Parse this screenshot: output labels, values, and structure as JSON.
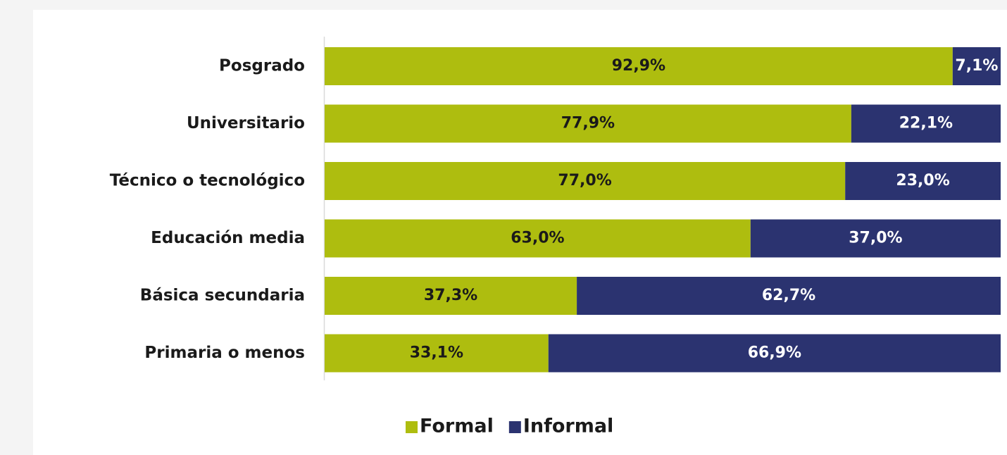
{
  "chart_data": {
    "type": "bar",
    "orientation": "horizontal",
    "stacked": true,
    "categories": [
      "Posgrado",
      "Universitario",
      "Técnico o tecnológico",
      "Educación media",
      "Básica secundaria",
      "Primaria o menos"
    ],
    "series": [
      {
        "name": "Formal",
        "color": "#aebd0f",
        "label_color": "#1a1a1a",
        "values": [
          92.9,
          77.9,
          77.0,
          63.0,
          37.3,
          33.1
        ],
        "labels": [
          "92,9%",
          "77,9%",
          "77,0%",
          "63,0%",
          "37,3%",
          "33,1%"
        ]
      },
      {
        "name": "Informal",
        "color": "#2b3370",
        "label_color": "#ffffff",
        "values": [
          7.1,
          22.1,
          23.0,
          37.0,
          62.7,
          66.9
        ],
        "labels": [
          "7,1%",
          "22,1%",
          "23,0%",
          "37,0%",
          "62,7%",
          "66,9%"
        ]
      }
    ],
    "xlim": [
      0,
      100
    ],
    "title": "",
    "xlabel": "",
    "ylabel": "",
    "grid": false,
    "legend": "bottom"
  }
}
